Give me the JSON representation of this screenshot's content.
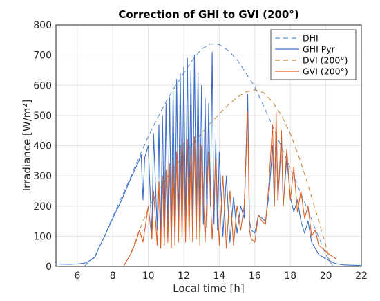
{
  "chart_data": {
    "type": "line",
    "title": "Correction of GHI to GVI (200°)",
    "xlabel": "Local time [h]",
    "ylabel": "Irradiance [W/m²]",
    "xlim": [
      4.8,
      22
    ],
    "ylim": [
      0,
      800
    ],
    "xticks": [
      "6",
      "8",
      "10",
      "12",
      "14",
      "16",
      "18",
      "20",
      "22"
    ],
    "yticks": [
      "0",
      "100",
      "200",
      "300",
      "400",
      "500",
      "600",
      "700",
      "800"
    ],
    "grid": true,
    "legend_position": "top-right",
    "series": [
      {
        "name": "DHI",
        "style": "dashed",
        "color": "#5b8fd6",
        "points": [
          [
            6.4,
            0
          ],
          [
            7.0,
            35
          ],
          [
            7.5,
            95
          ],
          [
            8,
            165
          ],
          [
            8.5,
            230
          ],
          [
            9,
            295
          ],
          [
            9.5,
            365
          ],
          [
            10,
            430
          ],
          [
            10.5,
            490
          ],
          [
            11,
            545
          ],
          [
            11.5,
            595
          ],
          [
            12,
            640
          ],
          [
            12.5,
            685
          ],
          [
            13,
            720
          ],
          [
            13.5,
            737
          ],
          [
            14,
            735
          ],
          [
            14.5,
            715
          ],
          [
            15,
            685
          ],
          [
            15.5,
            640
          ],
          [
            16,
            595
          ],
          [
            16.5,
            530
          ],
          [
            17,
            465
          ],
          [
            17.5,
            395
          ],
          [
            18,
            325
          ],
          [
            18.5,
            255
          ],
          [
            19,
            185
          ],
          [
            19.5,
            110
          ],
          [
            20,
            40
          ],
          [
            20.4,
            0
          ]
        ]
      },
      {
        "name": "GHI Pyr",
        "style": "solid",
        "color": "#3d6fc4",
        "points": [
          [
            4.8,
            8
          ],
          [
            5.5,
            7
          ],
          [
            6,
            8
          ],
          [
            6.5,
            12
          ],
          [
            7,
            30
          ],
          [
            7.2,
            60
          ],
          [
            7.5,
            95
          ],
          [
            8,
            160
          ],
          [
            8.5,
            220
          ],
          [
            9,
            290
          ],
          [
            9.4,
            340
          ],
          [
            9.6,
            370
          ],
          [
            9.7,
            220
          ],
          [
            9.8,
            360
          ],
          [
            10,
            400
          ],
          [
            10.2,
            100
          ],
          [
            10.3,
            440
          ],
          [
            10.5,
            120
          ],
          [
            10.6,
            470
          ],
          [
            10.7,
            90
          ],
          [
            10.8,
            500
          ],
          [
            10.9,
            110
          ],
          [
            11,
            540
          ],
          [
            11.1,
            120
          ],
          [
            11.2,
            560
          ],
          [
            11.3,
            100
          ],
          [
            11.4,
            580
          ],
          [
            11.5,
            110
          ],
          [
            11.6,
            620
          ],
          [
            11.7,
            130
          ],
          [
            11.8,
            640
          ],
          [
            11.9,
            150
          ],
          [
            12,
            660
          ],
          [
            12.1,
            140
          ],
          [
            12.2,
            690
          ],
          [
            12.3,
            160
          ],
          [
            12.4,
            650
          ],
          [
            12.5,
            150
          ],
          [
            12.6,
            700
          ],
          [
            12.7,
            170
          ],
          [
            12.8,
            640
          ],
          [
            12.9,
            120
          ],
          [
            13,
            600
          ],
          [
            13.1,
            140
          ],
          [
            13.2,
            560
          ],
          [
            13.3,
            130
          ],
          [
            13.4,
            540
          ],
          [
            13.5,
            200
          ],
          [
            13.6,
            710
          ],
          [
            13.7,
            140
          ],
          [
            13.8,
            420
          ],
          [
            13.9,
            120
          ],
          [
            14,
            380
          ],
          [
            14.2,
            100
          ],
          [
            14.4,
            300
          ],
          [
            14.6,
            80
          ],
          [
            14.8,
            230
          ],
          [
            15,
            110
          ],
          [
            15.2,
            200
          ],
          [
            15.4,
            160
          ],
          [
            15.6,
            570
          ],
          [
            15.7,
            150
          ],
          [
            15.8,
            120
          ],
          [
            16,
            110
          ],
          [
            16.2,
            170
          ],
          [
            16.4,
            160
          ],
          [
            16.6,
            150
          ],
          [
            16.8,
            240
          ],
          [
            17,
            400
          ],
          [
            17.1,
            200
          ],
          [
            17.2,
            480
          ],
          [
            17.3,
            220
          ],
          [
            17.5,
            420
          ],
          [
            17.6,
            200
          ],
          [
            17.8,
            360
          ],
          [
            18,
            230
          ],
          [
            18.2,
            180
          ],
          [
            18.4,
            220
          ],
          [
            18.6,
            150
          ],
          [
            18.8,
            110
          ],
          [
            19,
            150
          ],
          [
            19.2,
            80
          ],
          [
            19.4,
            60
          ],
          [
            19.6,
            40
          ],
          [
            20,
            25
          ],
          [
            20.5,
            10
          ],
          [
            21,
            5
          ],
          [
            22,
            3
          ]
        ]
      },
      {
        "name": "DVI (200°)",
        "style": "dashed",
        "color": "#c9893c",
        "points": [
          [
            8.6,
            0
          ],
          [
            9,
            40
          ],
          [
            9.5,
            120
          ],
          [
            10,
            190
          ],
          [
            10.5,
            245
          ],
          [
            11,
            290
          ],
          [
            11.5,
            330
          ],
          [
            12,
            370
          ],
          [
            12.5,
            405
          ],
          [
            13,
            440
          ],
          [
            13.5,
            475
          ],
          [
            14,
            505
          ],
          [
            14.5,
            535
          ],
          [
            15,
            560
          ],
          [
            15.5,
            578
          ],
          [
            16,
            585
          ],
          [
            16.5,
            575
          ],
          [
            17,
            545
          ],
          [
            17.5,
            500
          ],
          [
            18,
            440
          ],
          [
            18.5,
            360
          ],
          [
            19,
            270
          ],
          [
            19.5,
            170
          ],
          [
            20,
            70
          ],
          [
            20.3,
            0
          ]
        ]
      },
      {
        "name": "GVI (200°)",
        "style": "solid",
        "color": "#d9622b",
        "points": [
          [
            8.6,
            0
          ],
          [
            9,
            40
          ],
          [
            9.3,
            80
          ],
          [
            9.5,
            120
          ],
          [
            9.7,
            80
          ],
          [
            10,
            200
          ],
          [
            10.2,
            90
          ],
          [
            10.3,
            250
          ],
          [
            10.5,
            70
          ],
          [
            10.6,
            280
          ],
          [
            10.7,
            60
          ],
          [
            10.8,
            300
          ],
          [
            10.9,
            70
          ],
          [
            11,
            320
          ],
          [
            11.1,
            80
          ],
          [
            11.2,
            340
          ],
          [
            11.3,
            60
          ],
          [
            11.4,
            360
          ],
          [
            11.5,
            70
          ],
          [
            11.6,
            380
          ],
          [
            11.7,
            80
          ],
          [
            11.8,
            400
          ],
          [
            11.9,
            90
          ],
          [
            12,
            410
          ],
          [
            12.1,
            80
          ],
          [
            12.2,
            420
          ],
          [
            12.3,
            90
          ],
          [
            12.4,
            400
          ],
          [
            12.5,
            80
          ],
          [
            12.6,
            430
          ],
          [
            12.7,
            90
          ],
          [
            12.8,
            410
          ],
          [
            12.9,
            70
          ],
          [
            13,
            400
          ],
          [
            13.2,
            80
          ],
          [
            13.4,
            380
          ],
          [
            13.6,
            90
          ],
          [
            13.8,
            360
          ],
          [
            14,
            70
          ],
          [
            14.2,
            300
          ],
          [
            14.4,
            60
          ],
          [
            14.6,
            250
          ],
          [
            14.8,
            70
          ],
          [
            15,
            200
          ],
          [
            15.2,
            120
          ],
          [
            15.4,
            200
          ],
          [
            15.6,
            510
          ],
          [
            15.7,
            120
          ],
          [
            15.8,
            90
          ],
          [
            16,
            80
          ],
          [
            16.2,
            170
          ],
          [
            16.4,
            150
          ],
          [
            16.6,
            140
          ],
          [
            16.8,
            280
          ],
          [
            17,
            470
          ],
          [
            17.1,
            200
          ],
          [
            17.2,
            510
          ],
          [
            17.3,
            220
          ],
          [
            17.5,
            450
          ],
          [
            17.6,
            200
          ],
          [
            17.8,
            390
          ],
          [
            18,
            220
          ],
          [
            18.2,
            330
          ],
          [
            18.4,
            180
          ],
          [
            18.6,
            250
          ],
          [
            18.8,
            160
          ],
          [
            19,
            200
          ],
          [
            19.2,
            100
          ],
          [
            19.4,
            120
          ],
          [
            19.6,
            70
          ],
          [
            20,
            50
          ],
          [
            20.3,
            35
          ],
          [
            20.6,
            25
          ]
        ]
      }
    ]
  }
}
